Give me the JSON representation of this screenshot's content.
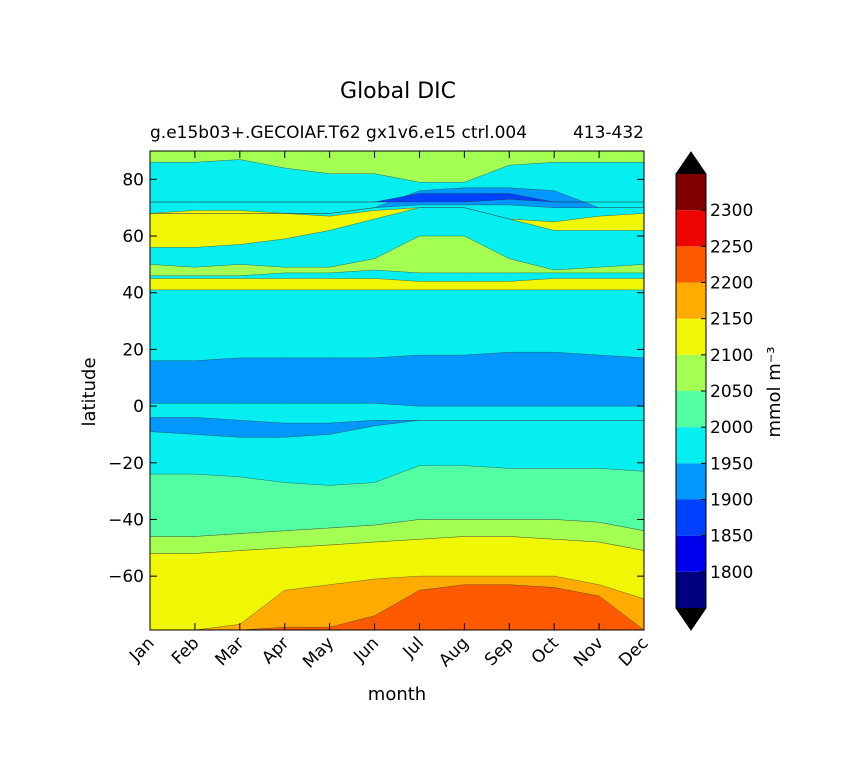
{
  "chart_data": {
    "type": "heatmap",
    "subtype": "filled-contour",
    "title": "Global DIC",
    "subtitle": "g.e15b03+.GECOIAF.T62 gx1v6.e15 ctrl.004",
    "subtitle_right": "413-432",
    "xlabel": "month",
    "ylabel": "latitude",
    "x": [
      "Jan",
      "Feb",
      "Mar",
      "Apr",
      "May",
      "Jun",
      "Jul",
      "Aug",
      "Sep",
      "Oct",
      "Nov",
      "Dec"
    ],
    "xlim": [
      1,
      12
    ],
    "ylim": [
      -79,
      90
    ],
    "yticks": [
      80,
      60,
      40,
      20,
      0,
      -20,
      -40,
      -60
    ],
    "colorbar": {
      "label": "mmol m⁻³",
      "levels": [
        1750,
        1800,
        1850,
        1900,
        1950,
        2000,
        2050,
        2100,
        2150,
        2200,
        2250,
        2300,
        2350
      ],
      "tick_labels": [
        "1800",
        "1850",
        "1900",
        "1950",
        "2000",
        "2050",
        "2100",
        "2150",
        "2200",
        "2250",
        "2300"
      ],
      "colors": [
        "#00007f",
        "#0000ed",
        "#0040ff",
        "#0097ff",
        "#05eef0",
        "#52ffa3",
        "#a3ff52",
        "#f0f705",
        "#ffab00",
        "#ff5a00",
        "#ed0400",
        "#7f0000"
      ],
      "under_color": "#000000",
      "over_color": "#000000"
    },
    "bands": [
      {
        "lo": 2050,
        "hi": 2100,
        "color": "#a3ff52",
        "edges": [
          [
            86,
            86,
            87,
            84,
            82,
            82,
            79,
            79,
            85,
            86,
            86,
            86
          ],
          [
            90,
            90,
            90,
            90,
            90,
            90,
            90,
            90,
            90,
            90,
            90,
            90
          ]
        ]
      },
      {
        "lo": 2100,
        "hi": 2150,
        "color": "#f0f705",
        "edges": [
          [
            56,
            56,
            57,
            59,
            62,
            66,
            70,
            70,
            66,
            62,
            62,
            62
          ],
          [
            68,
            69,
            69,
            68,
            67,
            69,
            70,
            70,
            66,
            65,
            67,
            68
          ]
        ]
      },
      {
        "lo": 2050,
        "hi": 2100,
        "color": "#a3ff52",
        "edges": [
          [
            46,
            46,
            46,
            47,
            47,
            48,
            47,
            47,
            47,
            47,
            47,
            47
          ],
          [
            50,
            49,
            50,
            49,
            49,
            52,
            60,
            60,
            52,
            48,
            49,
            50
          ]
        ]
      },
      {
        "lo": 2100,
        "hi": 2150,
        "color": "#f0f705",
        "edges": [
          [
            41,
            41,
            41,
            41,
            41,
            41,
            41,
            41,
            41,
            41,
            41,
            41
          ],
          [
            45,
            45,
            45,
            45,
            45,
            45,
            44,
            44,
            44,
            45,
            45,
            45
          ]
        ]
      },
      {
        "lo": 1900,
        "hi": 1950,
        "color": "#0097ff",
        "edges": [
          [
            1,
            1,
            1,
            1,
            1,
            1,
            0,
            0,
            0,
            0,
            0,
            0
          ],
          [
            16,
            16,
            17,
            17,
            17,
            17,
            18,
            18,
            19,
            19,
            18,
            17
          ]
        ]
      },
      {
        "lo": 1900,
        "hi": 1950,
        "color": "#0097ff",
        "edges": [
          [
            -9,
            -10,
            -11,
            -11,
            -10,
            -7,
            -5,
            -5,
            -5,
            -5,
            -5,
            -5
          ],
          [
            -4,
            -4,
            -5,
            -6,
            -6,
            -5,
            -5,
            -5,
            -5,
            -5,
            -5,
            -5
          ]
        ]
      },
      {
        "lo": 2000,
        "hi": 2050,
        "color": "#52ffa3",
        "edges": [
          [
            -46,
            -46,
            -45,
            -44,
            -43,
            -42,
            -40,
            -40,
            -40,
            -40,
            -41,
            -44
          ],
          [
            -24,
            -24,
            -25,
            -27,
            -28,
            -27,
            -21,
            -21,
            -22,
            -22,
            -22,
            -23
          ]
        ]
      },
      {
        "lo": 2050,
        "hi": 2100,
        "color": "#a3ff52",
        "edges": [
          [
            -52,
            -52,
            -51,
            -50,
            -49,
            -48,
            -47,
            -46,
            -46,
            -47,
            -48,
            -51
          ],
          [
            -46,
            -46,
            -45,
            -44,
            -43,
            -42,
            -40,
            -40,
            -40,
            -40,
            -41,
            -44
          ]
        ]
      },
      {
        "lo": 2100,
        "hi": 2150,
        "color": "#f0f705",
        "edges": [
          [
            -79,
            -79,
            -79,
            -79,
            -79,
            -79,
            -79,
            -79,
            -79,
            -79,
            -79,
            -79
          ],
          [
            -52,
            -52,
            -51,
            -50,
            -49,
            -48,
            -47,
            -46,
            -46,
            -47,
            -48,
            -51
          ]
        ]
      },
      {
        "lo": 2150,
        "hi": 2200,
        "color": "#ffab00",
        "edges": [
          [
            -79,
            -79,
            -79,
            -79,
            -79,
            -79,
            -79,
            -79,
            -79,
            -79,
            -79,
            -79
          ],
          [
            -79,
            -79,
            -77,
            -65,
            -63,
            -61,
            -60,
            -60,
            -60,
            -60,
            -63,
            -68
          ]
        ]
      },
      {
        "lo": 2200,
        "hi": 2250,
        "color": "#ff5a00",
        "edges": [
          [
            -79,
            -79,
            -79,
            -79,
            -79,
            -79,
            -79,
            -79,
            -79,
            -79,
            -79,
            -79
          ],
          [
            -79,
            -79,
            -79,
            -78,
            -78,
            -74,
            -65,
            -63,
            -63,
            -64,
            -67,
            -79
          ]
        ]
      },
      {
        "lo": 1900,
        "hi": 1950,
        "color": "#0097ff",
        "edges": [
          [
            68,
            68,
            68,
            68,
            68,
            70,
            71,
            71,
            71,
            70,
            70,
            70
          ],
          [
            68,
            68,
            68,
            68,
            68,
            70,
            76,
            77,
            77,
            76,
            70,
            70
          ]
        ]
      },
      {
        "lo": 1850,
        "hi": 1900,
        "color": "#0040ff",
        "edges": [
          [
            72,
            72,
            72,
            72,
            72,
            72,
            72,
            72,
            73,
            72,
            72,
            72
          ],
          [
            72,
            72,
            72,
            72,
            72,
            72,
            75,
            75,
            75,
            72,
            72,
            72
          ]
        ]
      }
    ]
  }
}
